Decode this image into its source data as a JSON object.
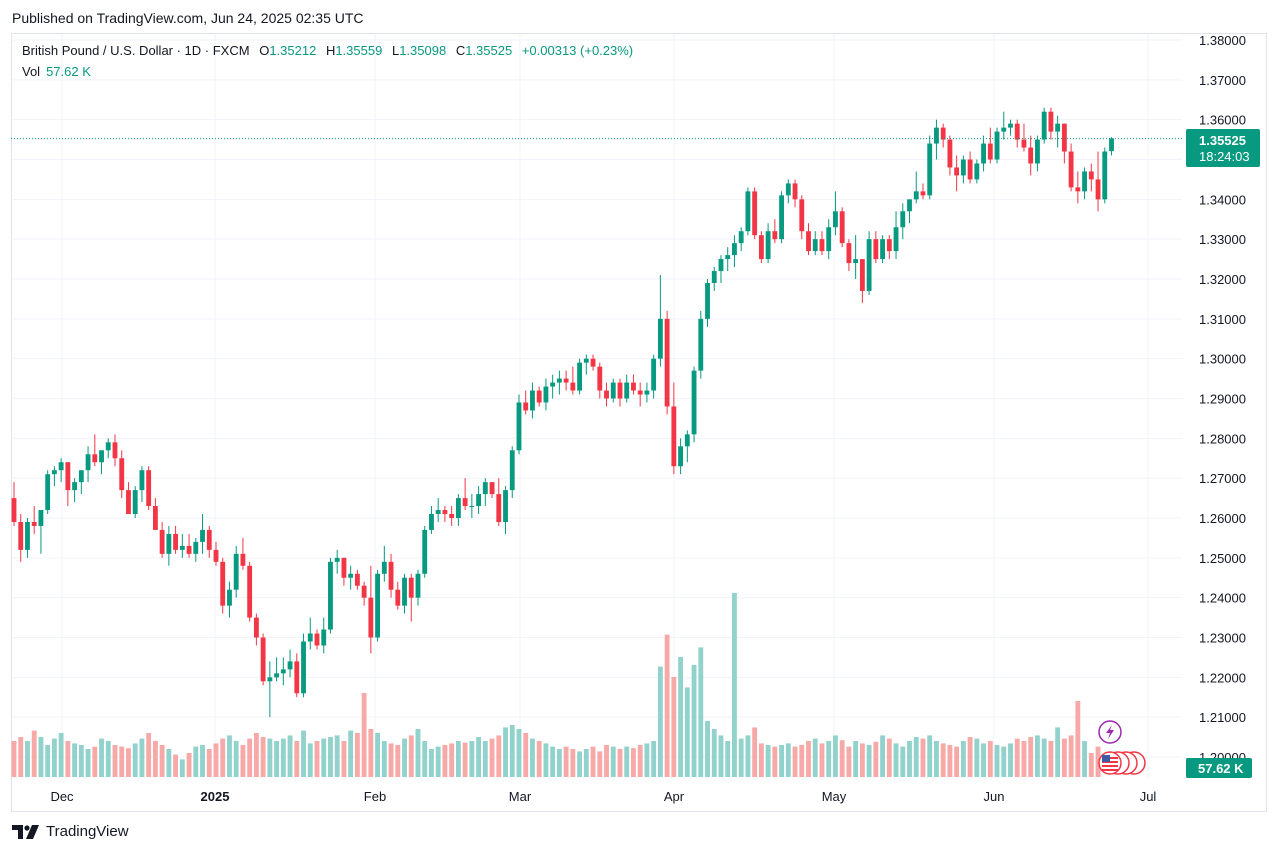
{
  "published": "Published on TradingView.com, Jun 24, 2025 02:35 UTC",
  "legend": {
    "symbol": "British Pound / U.S. Dollar · 1D · FXCM",
    "o_label": "O",
    "o": "1.35212",
    "h_label": "H",
    "h": "1.35559",
    "l_label": "L",
    "l": "1.35098",
    "c_label": "C",
    "c": "1.35525",
    "change": "+0.00313 (+0.23%)"
  },
  "vol_legend": {
    "label": "Vol",
    "value": "57.62 K"
  },
  "price_tag": {
    "price": "1.35525",
    "countdown": "18:24:03"
  },
  "vol_tag": "57.62 K",
  "footer": {
    "brand": "TradingView"
  },
  "colors": {
    "up": "#089981",
    "down": "#f23645",
    "up_vol": "#92d2cc",
    "down_vol": "#f7a9a7",
    "grid": "#f0f3fa"
  },
  "chart_data": {
    "type": "candlestick",
    "y_range": [
      1.195,
      1.3825
    ],
    "y_ticks": [
      "1.38000",
      "1.37000",
      "1.36000",
      "1.35000",
      "1.34000",
      "1.33000",
      "1.32000",
      "1.31000",
      "1.30000",
      "1.29000",
      "1.28000",
      "1.27000",
      "1.26000",
      "1.25000",
      "1.24000",
      "1.23000",
      "1.22000",
      "1.21000",
      "1.20000"
    ],
    "x_ticks": [
      "Dec",
      "2025",
      "Feb",
      "Mar",
      "Apr",
      "May",
      "Jun",
      "Jul"
    ],
    "candles": [
      [
        1.265,
        1.269,
        1.258,
        1.259
      ],
      [
        1.259,
        1.261,
        1.249,
        1.252
      ],
      [
        1.252,
        1.26,
        1.25,
        1.259
      ],
      [
        1.259,
        1.263,
        1.256,
        1.258
      ],
      [
        1.258,
        1.262,
        1.251,
        1.262
      ],
      [
        1.262,
        1.272,
        1.261,
        1.271
      ],
      [
        1.271,
        1.273,
        1.268,
        1.272
      ],
      [
        1.272,
        1.275,
        1.269,
        1.274
      ],
      [
        1.274,
        1.274,
        1.263,
        1.267
      ],
      [
        1.267,
        1.27,
        1.264,
        1.269
      ],
      [
        1.269,
        1.272,
        1.266,
        1.272
      ],
      [
        1.272,
        1.278,
        1.269,
        1.276
      ],
      [
        1.276,
        1.281,
        1.273,
        1.274
      ],
      [
        1.274,
        1.277,
        1.271,
        1.277
      ],
      [
        1.277,
        1.28,
        1.275,
        1.279
      ],
      [
        1.279,
        1.281,
        1.273,
        1.275
      ],
      [
        1.275,
        1.277,
        1.265,
        1.267
      ],
      [
        1.267,
        1.269,
        1.261,
        1.261
      ],
      [
        1.261,
        1.268,
        1.26,
        1.267
      ],
      [
        1.267,
        1.273,
        1.264,
        1.272
      ],
      [
        1.272,
        1.273,
        1.262,
        1.263
      ],
      [
        1.263,
        1.265,
        1.257,
        1.257
      ],
      [
        1.257,
        1.259,
        1.25,
        1.251
      ],
      [
        1.251,
        1.258,
        1.248,
        1.256
      ],
      [
        1.256,
        1.258,
        1.251,
        1.252
      ],
      [
        1.252,
        1.256,
        1.25,
        1.253
      ],
      [
        1.253,
        1.256,
        1.25,
        1.251
      ],
      [
        1.251,
        1.255,
        1.249,
        1.254
      ],
      [
        1.254,
        1.261,
        1.251,
        1.257
      ],
      [
        1.257,
        1.258,
        1.25,
        1.252
      ],
      [
        1.252,
        1.254,
        1.248,
        1.249
      ],
      [
        1.249,
        1.25,
        1.236,
        1.238
      ],
      [
        1.238,
        1.244,
        1.235,
        1.242
      ],
      [
        1.242,
        1.253,
        1.24,
        1.251
      ],
      [
        1.251,
        1.255,
        1.247,
        1.248
      ],
      [
        1.248,
        1.249,
        1.234,
        1.235
      ],
      [
        1.235,
        1.236,
        1.228,
        1.23
      ],
      [
        1.23,
        1.231,
        1.218,
        1.219
      ],
      [
        1.219,
        1.224,
        1.21,
        1.22
      ],
      [
        1.22,
        1.225,
        1.219,
        1.221
      ],
      [
        1.221,
        1.225,
        1.218,
        1.222
      ],
      [
        1.222,
        1.227,
        1.22,
        1.224
      ],
      [
        1.224,
        1.226,
        1.215,
        1.216
      ],
      [
        1.216,
        1.231,
        1.215,
        1.229
      ],
      [
        1.229,
        1.235,
        1.227,
        1.231
      ],
      [
        1.231,
        1.232,
        1.227,
        1.228
      ],
      [
        1.228,
        1.235,
        1.226,
        1.232
      ],
      [
        1.232,
        1.25,
        1.231,
        1.249
      ],
      [
        1.249,
        1.252,
        1.246,
        1.25
      ],
      [
        1.25,
        1.25,
        1.243,
        1.245
      ],
      [
        1.245,
        1.248,
        1.242,
        1.246
      ],
      [
        1.246,
        1.247,
        1.242,
        1.243
      ],
      [
        1.243,
        1.244,
        1.238,
        1.24
      ],
      [
        1.24,
        1.248,
        1.226,
        1.23
      ],
      [
        1.23,
        1.247,
        1.229,
        1.246
      ],
      [
        1.246,
        1.253,
        1.244,
        1.249
      ],
      [
        1.249,
        1.251,
        1.24,
        1.242
      ],
      [
        1.242,
        1.244,
        1.237,
        1.238
      ],
      [
        1.238,
        1.246,
        1.236,
        1.245
      ],
      [
        1.245,
        1.246,
        1.234,
        1.24
      ],
      [
        1.24,
        1.247,
        1.238,
        1.246
      ],
      [
        1.246,
        1.258,
        1.245,
        1.257
      ],
      [
        1.257,
        1.263,
        1.256,
        1.261
      ],
      [
        1.261,
        1.265,
        1.259,
        1.262
      ],
      [
        1.262,
        1.263,
        1.259,
        1.261
      ],
      [
        1.261,
        1.263,
        1.258,
        1.26
      ],
      [
        1.26,
        1.266,
        1.258,
        1.265
      ],
      [
        1.265,
        1.27,
        1.262,
        1.263
      ],
      [
        1.263,
        1.266,
        1.26,
        1.263
      ],
      [
        1.263,
        1.268,
        1.261,
        1.266
      ],
      [
        1.266,
        1.27,
        1.263,
        1.269
      ],
      [
        1.269,
        1.269,
        1.265,
        1.266
      ],
      [
        1.266,
        1.27,
        1.258,
        1.259
      ],
      [
        1.259,
        1.268,
        1.256,
        1.267
      ],
      [
        1.267,
        1.278,
        1.265,
        1.277
      ],
      [
        1.277,
        1.291,
        1.276,
        1.289
      ],
      [
        1.289,
        1.292,
        1.286,
        1.287
      ],
      [
        1.287,
        1.294,
        1.285,
        1.292
      ],
      [
        1.292,
        1.293,
        1.288,
        1.289
      ],
      [
        1.289,
        1.295,
        1.287,
        1.293
      ],
      [
        1.293,
        1.296,
        1.29,
        1.294
      ],
      [
        1.294,
        1.297,
        1.291,
        1.295
      ],
      [
        1.295,
        1.297,
        1.292,
        1.294
      ],
      [
        1.294,
        1.298,
        1.291,
        1.292
      ],
      [
        1.292,
        1.3,
        1.291,
        1.299
      ],
      [
        1.299,
        1.301,
        1.296,
        1.3
      ],
      [
        1.3,
        1.301,
        1.297,
        1.298
      ],
      [
        1.298,
        1.299,
        1.29,
        1.292
      ],
      [
        1.292,
        1.294,
        1.288,
        1.29
      ],
      [
        1.29,
        1.295,
        1.289,
        1.294
      ],
      [
        1.294,
        1.295,
        1.288,
        1.29
      ],
      [
        1.29,
        1.296,
        1.289,
        1.294
      ],
      [
        1.294,
        1.296,
        1.291,
        1.292
      ],
      [
        1.292,
        1.294,
        1.288,
        1.291
      ],
      [
        1.291,
        1.294,
        1.289,
        1.292
      ],
      [
        1.292,
        1.301,
        1.29,
        1.3
      ],
      [
        1.3,
        1.321,
        1.298,
        1.31
      ],
      [
        1.31,
        1.312,
        1.286,
        1.288
      ],
      [
        1.288,
        1.294,
        1.271,
        1.273
      ],
      [
        1.273,
        1.28,
        1.271,
        1.278
      ],
      [
        1.278,
        1.282,
        1.274,
        1.281
      ],
      [
        1.281,
        1.298,
        1.279,
        1.297
      ],
      [
        1.297,
        1.312,
        1.295,
        1.31
      ],
      [
        1.31,
        1.32,
        1.308,
        1.319
      ],
      [
        1.319,
        1.323,
        1.317,
        1.322
      ],
      [
        1.322,
        1.326,
        1.319,
        1.325
      ],
      [
        1.325,
        1.328,
        1.322,
        1.326
      ],
      [
        1.326,
        1.331,
        1.323,
        1.329
      ],
      [
        1.329,
        1.333,
        1.327,
        1.332
      ],
      [
        1.332,
        1.343,
        1.331,
        1.342
      ],
      [
        1.342,
        1.343,
        1.33,
        1.331
      ],
      [
        1.331,
        1.332,
        1.324,
        1.325
      ],
      [
        1.325,
        1.334,
        1.324,
        1.332
      ],
      [
        1.332,
        1.335,
        1.329,
        1.33
      ],
      [
        1.33,
        1.342,
        1.329,
        1.341
      ],
      [
        1.341,
        1.345,
        1.339,
        1.344
      ],
      [
        1.344,
        1.345,
        1.338,
        1.34
      ],
      [
        1.34,
        1.341,
        1.33,
        1.332
      ],
      [
        1.332,
        1.334,
        1.326,
        1.327
      ],
      [
        1.327,
        1.332,
        1.326,
        1.33
      ],
      [
        1.33,
        1.332,
        1.326,
        1.327
      ],
      [
        1.327,
        1.335,
        1.325,
        1.333
      ],
      [
        1.333,
        1.342,
        1.331,
        1.337
      ],
      [
        1.337,
        1.338,
        1.328,
        1.329
      ],
      [
        1.329,
        1.33,
        1.322,
        1.324
      ],
      [
        1.324,
        1.331,
        1.32,
        1.325
      ],
      [
        1.325,
        1.325,
        1.314,
        1.317
      ],
      [
        1.317,
        1.332,
        1.316,
        1.33
      ],
      [
        1.33,
        1.332,
        1.324,
        1.325
      ],
      [
        1.325,
        1.331,
        1.324,
        1.33
      ],
      [
        1.33,
        1.331,
        1.325,
        1.327
      ],
      [
        1.327,
        1.337,
        1.325,
        1.333
      ],
      [
        1.333,
        1.339,
        1.33,
        1.337
      ],
      [
        1.337,
        1.34,
        1.334,
        1.34
      ],
      [
        1.34,
        1.347,
        1.339,
        1.342
      ],
      [
        1.342,
        1.344,
        1.34,
        1.341
      ],
      [
        1.341,
        1.356,
        1.34,
        1.354
      ],
      [
        1.354,
        1.36,
        1.35,
        1.358
      ],
      [
        1.358,
        1.359,
        1.353,
        1.355
      ],
      [
        1.355,
        1.356,
        1.346,
        1.348
      ],
      [
        1.348,
        1.351,
        1.342,
        1.346
      ],
      [
        1.346,
        1.351,
        1.344,
        1.35
      ],
      [
        1.35,
        1.352,
        1.344,
        1.345
      ],
      [
        1.345,
        1.35,
        1.344,
        1.349
      ],
      [
        1.349,
        1.356,
        1.347,
        1.354
      ],
      [
        1.354,
        1.358,
        1.349,
        1.35
      ],
      [
        1.35,
        1.358,
        1.349,
        1.357
      ],
      [
        1.357,
        1.362,
        1.355,
        1.358
      ],
      [
        1.358,
        1.36,
        1.356,
        1.359
      ],
      [
        1.359,
        1.36,
        1.353,
        1.355
      ],
      [
        1.355,
        1.359,
        1.352,
        1.353
      ],
      [
        1.353,
        1.356,
        1.346,
        1.349
      ],
      [
        1.349,
        1.356,
        1.347,
        1.355
      ],
      [
        1.355,
        1.363,
        1.354,
        1.362
      ],
      [
        1.362,
        1.363,
        1.355,
        1.357
      ],
      [
        1.357,
        1.361,
        1.353,
        1.359
      ],
      [
        1.359,
        1.359,
        1.349,
        1.352
      ],
      [
        1.352,
        1.354,
        1.342,
        1.343
      ],
      [
        1.343,
        1.347,
        1.339,
        1.342
      ],
      [
        1.342,
        1.348,
        1.34,
        1.347
      ],
      [
        1.347,
        1.349,
        1.342,
        1.345
      ],
      [
        1.345,
        1.352,
        1.337,
        1.34
      ],
      [
        1.34,
        1.353,
        1.339,
        1.352
      ],
      [
        1.3521,
        1.3556,
        1.351,
        1.3553
      ]
    ],
    "volumes": [
      0.45,
      0.5,
      0.45,
      0.58,
      0.5,
      0.4,
      0.48,
      0.55,
      0.45,
      0.42,
      0.4,
      0.35,
      0.38,
      0.48,
      0.45,
      0.4,
      0.38,
      0.36,
      0.42,
      0.48,
      0.55,
      0.45,
      0.4,
      0.35,
      0.28,
      0.22,
      0.3,
      0.38,
      0.4,
      0.35,
      0.42,
      0.48,
      0.52,
      0.45,
      0.4,
      0.48,
      0.55,
      0.5,
      0.48,
      0.45,
      0.48,
      0.52,
      0.45,
      0.58,
      0.42,
      0.45,
      0.48,
      0.5,
      0.52,
      0.45,
      0.58,
      0.55,
      1.05,
      0.6,
      0.55,
      0.45,
      0.42,
      0.4,
      0.48,
      0.52,
      0.6,
      0.45,
      0.35,
      0.38,
      0.4,
      0.42,
      0.45,
      0.43,
      0.45,
      0.5,
      0.45,
      0.48,
      0.52,
      0.62,
      0.65,
      0.6,
      0.55,
      0.48,
      0.45,
      0.42,
      0.38,
      0.35,
      0.38,
      0.35,
      0.32,
      0.35,
      0.38,
      0.32,
      0.4,
      0.38,
      0.35,
      0.38,
      0.36,
      0.4,
      0.42,
      0.45,
      1.38,
      1.78,
      1.25,
      1.5,
      1.12,
      1.4,
      1.62,
      0.7,
      0.6,
      0.52,
      0.45,
      2.3,
      0.48,
      0.52,
      0.62,
      0.42,
      0.4,
      0.38,
      0.4,
      0.42,
      0.38,
      0.4,
      0.45,
      0.48,
      0.42,
      0.45,
      0.52,
      0.46,
      0.38,
      0.45,
      0.42,
      0.4,
      0.44,
      0.52,
      0.48,
      0.42,
      0.38,
      0.45,
      0.5,
      0.48,
      0.52,
      0.45,
      0.42,
      0.4,
      0.38,
      0.45,
      0.5,
      0.48,
      0.42,
      0.45,
      0.4,
      0.38,
      0.42,
      0.48,
      0.45,
      0.5,
      0.52,
      0.48,
      0.45,
      0.62,
      0.48,
      0.52,
      0.95,
      0.45,
      0.3,
      0.38
    ]
  }
}
